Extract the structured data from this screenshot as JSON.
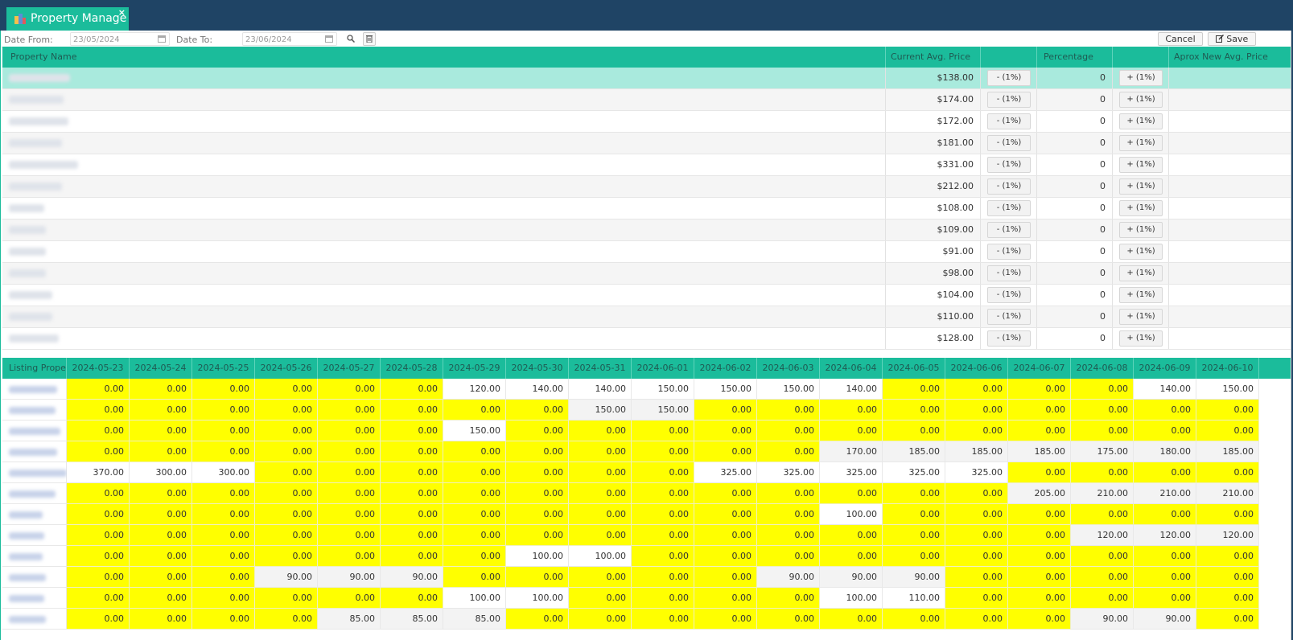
{
  "tab": {
    "title": "Property Manage",
    "close": "×",
    "icon": "building-icon"
  },
  "toolbar": {
    "date_from_label": "Date From:",
    "date_from_value": "23/05/2024",
    "date_to_label": "Date To:",
    "date_to_value": "23/06/2024",
    "search_icon": "search-icon",
    "clear_icon": "trash-icon",
    "cancel_label": "Cancel",
    "save_label": "Save",
    "save_icon": "edit-icon"
  },
  "top_table": {
    "headers": {
      "property_name": "Property Name",
      "current_avg_price": "Current Avg. Price",
      "minus_col": "",
      "percentage": "Percentage",
      "plus_col": "",
      "aprox_new": "Aprox New Avg. Price"
    },
    "minus_label": "- (1%)",
    "plus_label": "+ (1%)",
    "rows": [
      {
        "price": "$138.00",
        "pct": "0",
        "selected": true
      },
      {
        "price": "$174.00",
        "pct": "0"
      },
      {
        "price": "$172.00",
        "pct": "0"
      },
      {
        "price": "$181.00",
        "pct": "0"
      },
      {
        "price": "$331.00",
        "pct": "0"
      },
      {
        "price": "$212.00",
        "pct": "0"
      },
      {
        "price": "$108.00",
        "pct": "0"
      },
      {
        "price": "$109.00",
        "pct": "0"
      },
      {
        "price": "$91.00",
        "pct": "0"
      },
      {
        "price": "$98.00",
        "pct": "0"
      },
      {
        "price": "$104.00",
        "pct": "0"
      },
      {
        "price": "$110.00",
        "pct": "0"
      },
      {
        "price": "$128.00",
        "pct": "0"
      }
    ]
  },
  "bottom_table": {
    "first_header": "Listing Prope",
    "dates": [
      "2024-05-23",
      "2024-05-24",
      "2024-05-25",
      "2024-05-26",
      "2024-05-27",
      "2024-05-28",
      "2024-05-29",
      "2024-05-30",
      "2024-05-31",
      "2024-06-01",
      "2024-06-02",
      "2024-06-03",
      "2024-06-04",
      "2024-06-05",
      "2024-06-06",
      "2024-06-07",
      "2024-06-08",
      "2024-06-09",
      "2024-06-10"
    ],
    "rows": [
      [
        "0.00",
        "0.00",
        "0.00",
        "0.00",
        "0.00",
        "0.00",
        "120.00",
        "140.00",
        "140.00",
        "150.00",
        "150.00",
        "150.00",
        "140.00",
        "0.00",
        "0.00",
        "0.00",
        "0.00",
        "140.00",
        "150.00"
      ],
      [
        "0.00",
        "0.00",
        "0.00",
        "0.00",
        "0.00",
        "0.00",
        "0.00",
        "0.00",
        "150.00",
        "150.00",
        "0.00",
        "0.00",
        "0.00",
        "0.00",
        "0.00",
        "0.00",
        "0.00",
        "0.00",
        "0.00"
      ],
      [
        "0.00",
        "0.00",
        "0.00",
        "0.00",
        "0.00",
        "0.00",
        "150.00",
        "0.00",
        "0.00",
        "0.00",
        "0.00",
        "0.00",
        "0.00",
        "0.00",
        "0.00",
        "0.00",
        "0.00",
        "0.00",
        "0.00"
      ],
      [
        "0.00",
        "0.00",
        "0.00",
        "0.00",
        "0.00",
        "0.00",
        "0.00",
        "0.00",
        "0.00",
        "0.00",
        "0.00",
        "0.00",
        "170.00",
        "185.00",
        "185.00",
        "185.00",
        "175.00",
        "180.00",
        "185.00"
      ],
      [
        "370.00",
        "300.00",
        "300.00",
        "0.00",
        "0.00",
        "0.00",
        "0.00",
        "0.00",
        "0.00",
        "0.00",
        "325.00",
        "325.00",
        "325.00",
        "325.00",
        "325.00",
        "0.00",
        "0.00",
        "0.00",
        "0.00"
      ],
      [
        "0.00",
        "0.00",
        "0.00",
        "0.00",
        "0.00",
        "0.00",
        "0.00",
        "0.00",
        "0.00",
        "0.00",
        "0.00",
        "0.00",
        "0.00",
        "0.00",
        "0.00",
        "205.00",
        "210.00",
        "210.00",
        "210.00"
      ],
      [
        "0.00",
        "0.00",
        "0.00",
        "0.00",
        "0.00",
        "0.00",
        "0.00",
        "0.00",
        "0.00",
        "0.00",
        "0.00",
        "0.00",
        "100.00",
        "0.00",
        "0.00",
        "0.00",
        "0.00",
        "0.00",
        "0.00"
      ],
      [
        "0.00",
        "0.00",
        "0.00",
        "0.00",
        "0.00",
        "0.00",
        "0.00",
        "0.00",
        "0.00",
        "0.00",
        "0.00",
        "0.00",
        "0.00",
        "0.00",
        "0.00",
        "0.00",
        "120.00",
        "120.00",
        "120.00"
      ],
      [
        "0.00",
        "0.00",
        "0.00",
        "0.00",
        "0.00",
        "0.00",
        "0.00",
        "100.00",
        "100.00",
        "0.00",
        "0.00",
        "0.00",
        "0.00",
        "0.00",
        "0.00",
        "0.00",
        "0.00",
        "0.00",
        "0.00"
      ],
      [
        "0.00",
        "0.00",
        "0.00",
        "90.00",
        "90.00",
        "90.00",
        "0.00",
        "0.00",
        "0.00",
        "0.00",
        "0.00",
        "90.00",
        "90.00",
        "90.00",
        "0.00",
        "0.00",
        "0.00",
        "0.00",
        "0.00"
      ],
      [
        "0.00",
        "0.00",
        "0.00",
        "0.00",
        "0.00",
        "0.00",
        "100.00",
        "100.00",
        "0.00",
        "0.00",
        "0.00",
        "0.00",
        "100.00",
        "110.00",
        "0.00",
        "0.00",
        "0.00",
        "0.00",
        "0.00"
      ],
      [
        "0.00",
        "0.00",
        "0.00",
        "0.00",
        "85.00",
        "85.00",
        "85.00",
        "0.00",
        "0.00",
        "0.00",
        "0.00",
        "0.00",
        "0.00",
        "0.00",
        "0.00",
        "0.00",
        "90.00",
        "90.00",
        "0.00"
      ]
    ],
    "white_cells": [
      [
        6,
        7,
        8,
        9,
        10,
        11,
        12,
        17,
        18
      ],
      [
        8,
        9
      ],
      [
        6
      ],
      [
        12,
        13,
        14,
        15,
        16,
        17,
        18
      ],
      [
        0,
        1,
        2,
        10,
        11,
        12,
        13,
        14
      ],
      [
        15,
        16,
        17,
        18
      ],
      [
        12
      ],
      [
        16,
        17,
        18
      ],
      [
        7,
        8
      ],
      [
        3,
        4,
        5,
        11,
        12,
        13
      ],
      [
        6,
        7,
        12,
        13
      ],
      [
        4,
        5,
        6,
        16,
        17
      ]
    ]
  },
  "colors": {
    "header_bg": "#1f4465",
    "accent": "#1bbc9b",
    "selected_row": "#a9eadd",
    "zero_cell": "#ffff00"
  }
}
